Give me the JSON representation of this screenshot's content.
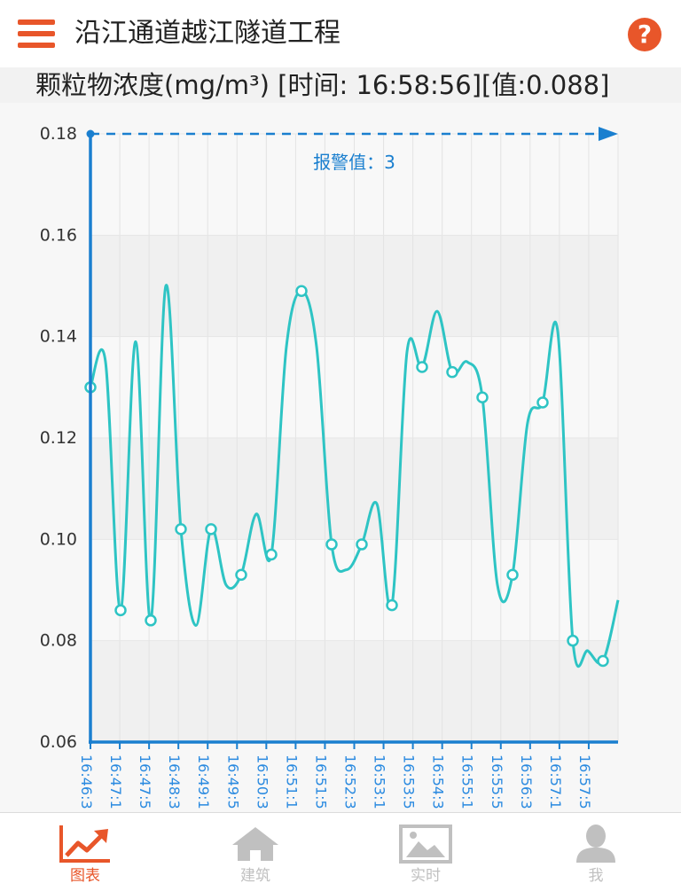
{
  "header": {
    "title": "沿江通道越江隧道工程",
    "menu_icon": "hamburger-menu-icon",
    "help_icon": "question-mark-icon",
    "help_label": "?"
  },
  "chart_header": {
    "text": "颗粒物浓度(mg/m³) [时间: 16:58:56][值:0.088]"
  },
  "chart_data": {
    "type": "line",
    "title": "颗粒物浓度(mg/m³)",
    "ylim": [
      0.06,
      0.18
    ],
    "yticks": [
      "0.18",
      "0.16",
      "0.14",
      "0.12",
      "0.10",
      "0.08",
      "0.06"
    ],
    "x_tick_labels": [
      "16:46:3",
      "16:47:1",
      "16:47:5",
      "16:48:3",
      "16:49:1",
      "16:49:5",
      "16:50:3",
      "16:51:1",
      "16:51:5",
      "16:52:3",
      "16:53:1",
      "16:53:5",
      "16:54:3",
      "16:55:1",
      "16:55:5",
      "16:56:3",
      "16:57:1",
      "16:57:5"
    ],
    "values": [
      0.13,
      0.135,
      0.086,
      0.139,
      0.084,
      0.15,
      0.102,
      0.083,
      0.102,
      0.091,
      0.093,
      0.105,
      0.097,
      0.138,
      0.149,
      0.138,
      0.099,
      0.094,
      0.099,
      0.107,
      0.087,
      0.137,
      0.134,
      0.145,
      0.133,
      0.135,
      0.128,
      0.091,
      0.093,
      0.123,
      0.127,
      0.141,
      0.08,
      0.078,
      0.076,
      0.088
    ],
    "markers": [
      0,
      2,
      4,
      6,
      8,
      10,
      12,
      14,
      16,
      18,
      20,
      22,
      24,
      26,
      28,
      30,
      32,
      34
    ],
    "alarm": {
      "value": 0.18,
      "label": "报警值：3"
    },
    "line_color": "#2ec4c4",
    "axis_color": "#1a7fcf",
    "grid": true,
    "legend": "none"
  },
  "tabs": [
    {
      "label": "图表",
      "icon": "trend-chart-icon",
      "active": true
    },
    {
      "label": "建筑",
      "icon": "house-icon",
      "active": false
    },
    {
      "label": "实时",
      "icon": "image-icon",
      "active": false
    },
    {
      "label": "我",
      "icon": "user-icon",
      "active": false
    }
  ],
  "colors": {
    "accent": "#e8562a",
    "inactive": "#c0c0c0",
    "axis": "#1a7fcf",
    "line": "#2ec4c4"
  }
}
